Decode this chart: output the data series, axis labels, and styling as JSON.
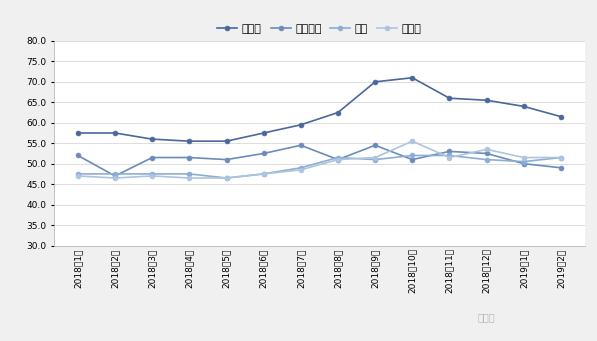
{
  "x_labels": [
    "2018年1月",
    "2018年2月",
    "2018年3月",
    "2018年4月",
    "2018年5月",
    "2018年6月",
    "2018年7月",
    "2018年8月",
    "2018年9月",
    "2018年10月",
    "2018年11月",
    "2018年12月",
    "2019年1月",
    "2019年2月"
  ],
  "series": [
    {
      "name": "几内亚",
      "color": "#4a6899",
      "values": [
        57.5,
        57.5,
        56.0,
        55.5,
        55.5,
        57.5,
        59.5,
        62.5,
        70.0,
        71.0,
        66.0,
        65.5,
        64.0,
        61.5
      ]
    },
    {
      "name": "澳大利亚",
      "color": "#6b8cba",
      "values": [
        52.0,
        47.0,
        51.5,
        51.5,
        51.0,
        52.5,
        54.5,
        51.0,
        54.5,
        51.0,
        53.0,
        52.5,
        50.0,
        49.0
      ]
    },
    {
      "name": "印尼",
      "color": "#8badd4",
      "values": [
        47.5,
        47.5,
        47.5,
        47.5,
        46.5,
        47.5,
        49.0,
        51.5,
        51.0,
        52.0,
        52.0,
        51.0,
        50.5,
        51.5
      ]
    },
    {
      "name": "所罗门",
      "color": "#adc4df",
      "values": [
        47.0,
        46.5,
        47.0,
        46.5,
        46.5,
        47.5,
        48.5,
        51.0,
        51.5,
        55.5,
        51.5,
        53.5,
        51.5,
        51.5
      ]
    }
  ],
  "ylim": [
    30.0,
    80.0
  ],
  "yticks": [
    30.0,
    35.0,
    40.0,
    45.0,
    50.0,
    55.0,
    60.0,
    65.0,
    70.0,
    75.0,
    80.0
  ],
  "background_color": "#f0f0f0",
  "plot_bg_color": "#ffffff",
  "grid_color": "#d0d0d0",
  "marker": "o",
  "marker_size": 3.5,
  "linewidth": 1.2,
  "tick_fontsize": 6.5,
  "legend_fontsize": 8
}
